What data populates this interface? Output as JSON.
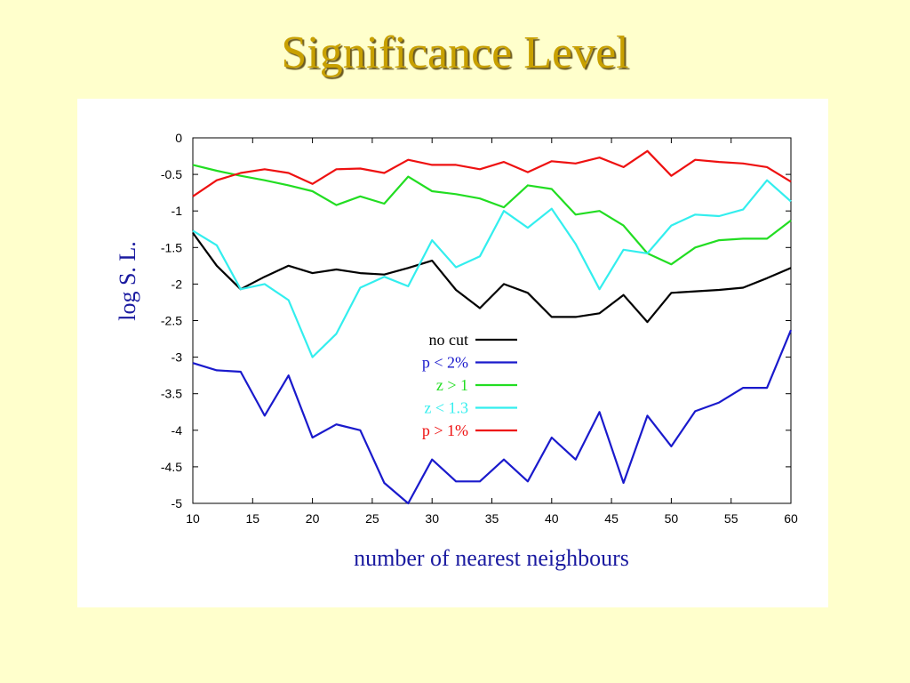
{
  "slide": {
    "title": "Significance Level"
  },
  "colors": {
    "background": "#ffffcc",
    "title": "#c8a000",
    "axis_label": "#1a1aa0"
  },
  "chart_data": {
    "type": "line",
    "title": "",
    "xlabel": "number of nearest neighbours",
    "ylabel": "log S. L.",
    "xlim": [
      10,
      60
    ],
    "ylim": [
      -5,
      0
    ],
    "xticks": [
      10,
      15,
      20,
      25,
      30,
      35,
      40,
      45,
      50,
      55,
      60
    ],
    "xtick_labels": [
      "10",
      "15",
      "20",
      "25",
      "30",
      "35",
      "40",
      "45",
      "50",
      "55",
      "60"
    ],
    "yticks": [
      0,
      -0.5,
      -1,
      -1.5,
      -2,
      -2.5,
      -3,
      -3.5,
      -4,
      -4.5,
      -5
    ],
    "ytick_labels": [
      "0",
      "-0.5",
      "-1",
      "-1.5",
      "-2",
      "-2.5",
      "-3",
      "-3.5",
      "-4",
      "-4.5",
      "-5"
    ],
    "grid": false,
    "legend": "center",
    "x": [
      10,
      12,
      14,
      16,
      18,
      20,
      22,
      24,
      26,
      28,
      30,
      32,
      34,
      36,
      38,
      40,
      42,
      44,
      46,
      48,
      50,
      52,
      54,
      56,
      58,
      60
    ],
    "series": [
      {
        "name": "no cut",
        "color": "#000000",
        "values": [
          -1.3,
          -1.75,
          -2.07,
          -1.9,
          -1.75,
          -1.85,
          -1.8,
          -1.85,
          -1.87,
          -1.78,
          -1.68,
          -2.08,
          -2.33,
          -2.0,
          -2.12,
          -2.45,
          -2.45,
          -2.4,
          -2.15,
          -2.52,
          -2.12,
          -2.1,
          -2.08,
          -2.05,
          -1.92,
          -1.78
        ]
      },
      {
        "name": "p < 2%",
        "color": "#1a1acc",
        "values": [
          -3.08,
          -3.18,
          -3.2,
          -3.8,
          -3.25,
          -4.1,
          -3.92,
          -4.0,
          -4.72,
          -5.0,
          -4.4,
          -4.7,
          -4.7,
          -4.4,
          -4.7,
          -4.1,
          -4.4,
          -3.75,
          -4.72,
          -3.8,
          -4.22,
          -3.74,
          -3.62,
          -3.42,
          -3.42,
          -2.63
        ]
      },
      {
        "name": "z > 1",
        "color": "#22dd22",
        "values": [
          -0.37,
          -0.45,
          -0.52,
          -0.58,
          -0.65,
          -0.73,
          -0.92,
          -0.8,
          -0.9,
          -0.53,
          -0.73,
          -0.77,
          -0.83,
          -0.95,
          -0.65,
          -0.7,
          -1.05,
          -1.0,
          -1.2,
          -1.58,
          -1.73,
          -1.5,
          -1.4,
          -1.38,
          -1.38,
          -1.13
        ]
      },
      {
        "name": "z < 1.3",
        "color": "#33eeee",
        "values": [
          -1.27,
          -1.47,
          -2.07,
          -2.0,
          -2.22,
          -3.0,
          -2.68,
          -2.05,
          -1.9,
          -2.03,
          -1.4,
          -1.77,
          -1.62,
          -1.0,
          -1.23,
          -0.97,
          -1.45,
          -2.07,
          -1.53,
          -1.58,
          -1.2,
          -1.05,
          -1.07,
          -0.98,
          -0.58,
          -0.87
        ]
      },
      {
        "name": "p > 1%",
        "color": "#ee1111",
        "values": [
          -0.8,
          -0.58,
          -0.48,
          -0.43,
          -0.48,
          -0.63,
          -0.43,
          -0.42,
          -0.48,
          -0.3,
          -0.37,
          -0.37,
          -0.43,
          -0.33,
          -0.47,
          -0.32,
          -0.35,
          -0.27,
          -0.4,
          -0.18,
          -0.52,
          -0.3,
          -0.33,
          -0.35,
          -0.4,
          -0.6
        ]
      }
    ]
  }
}
